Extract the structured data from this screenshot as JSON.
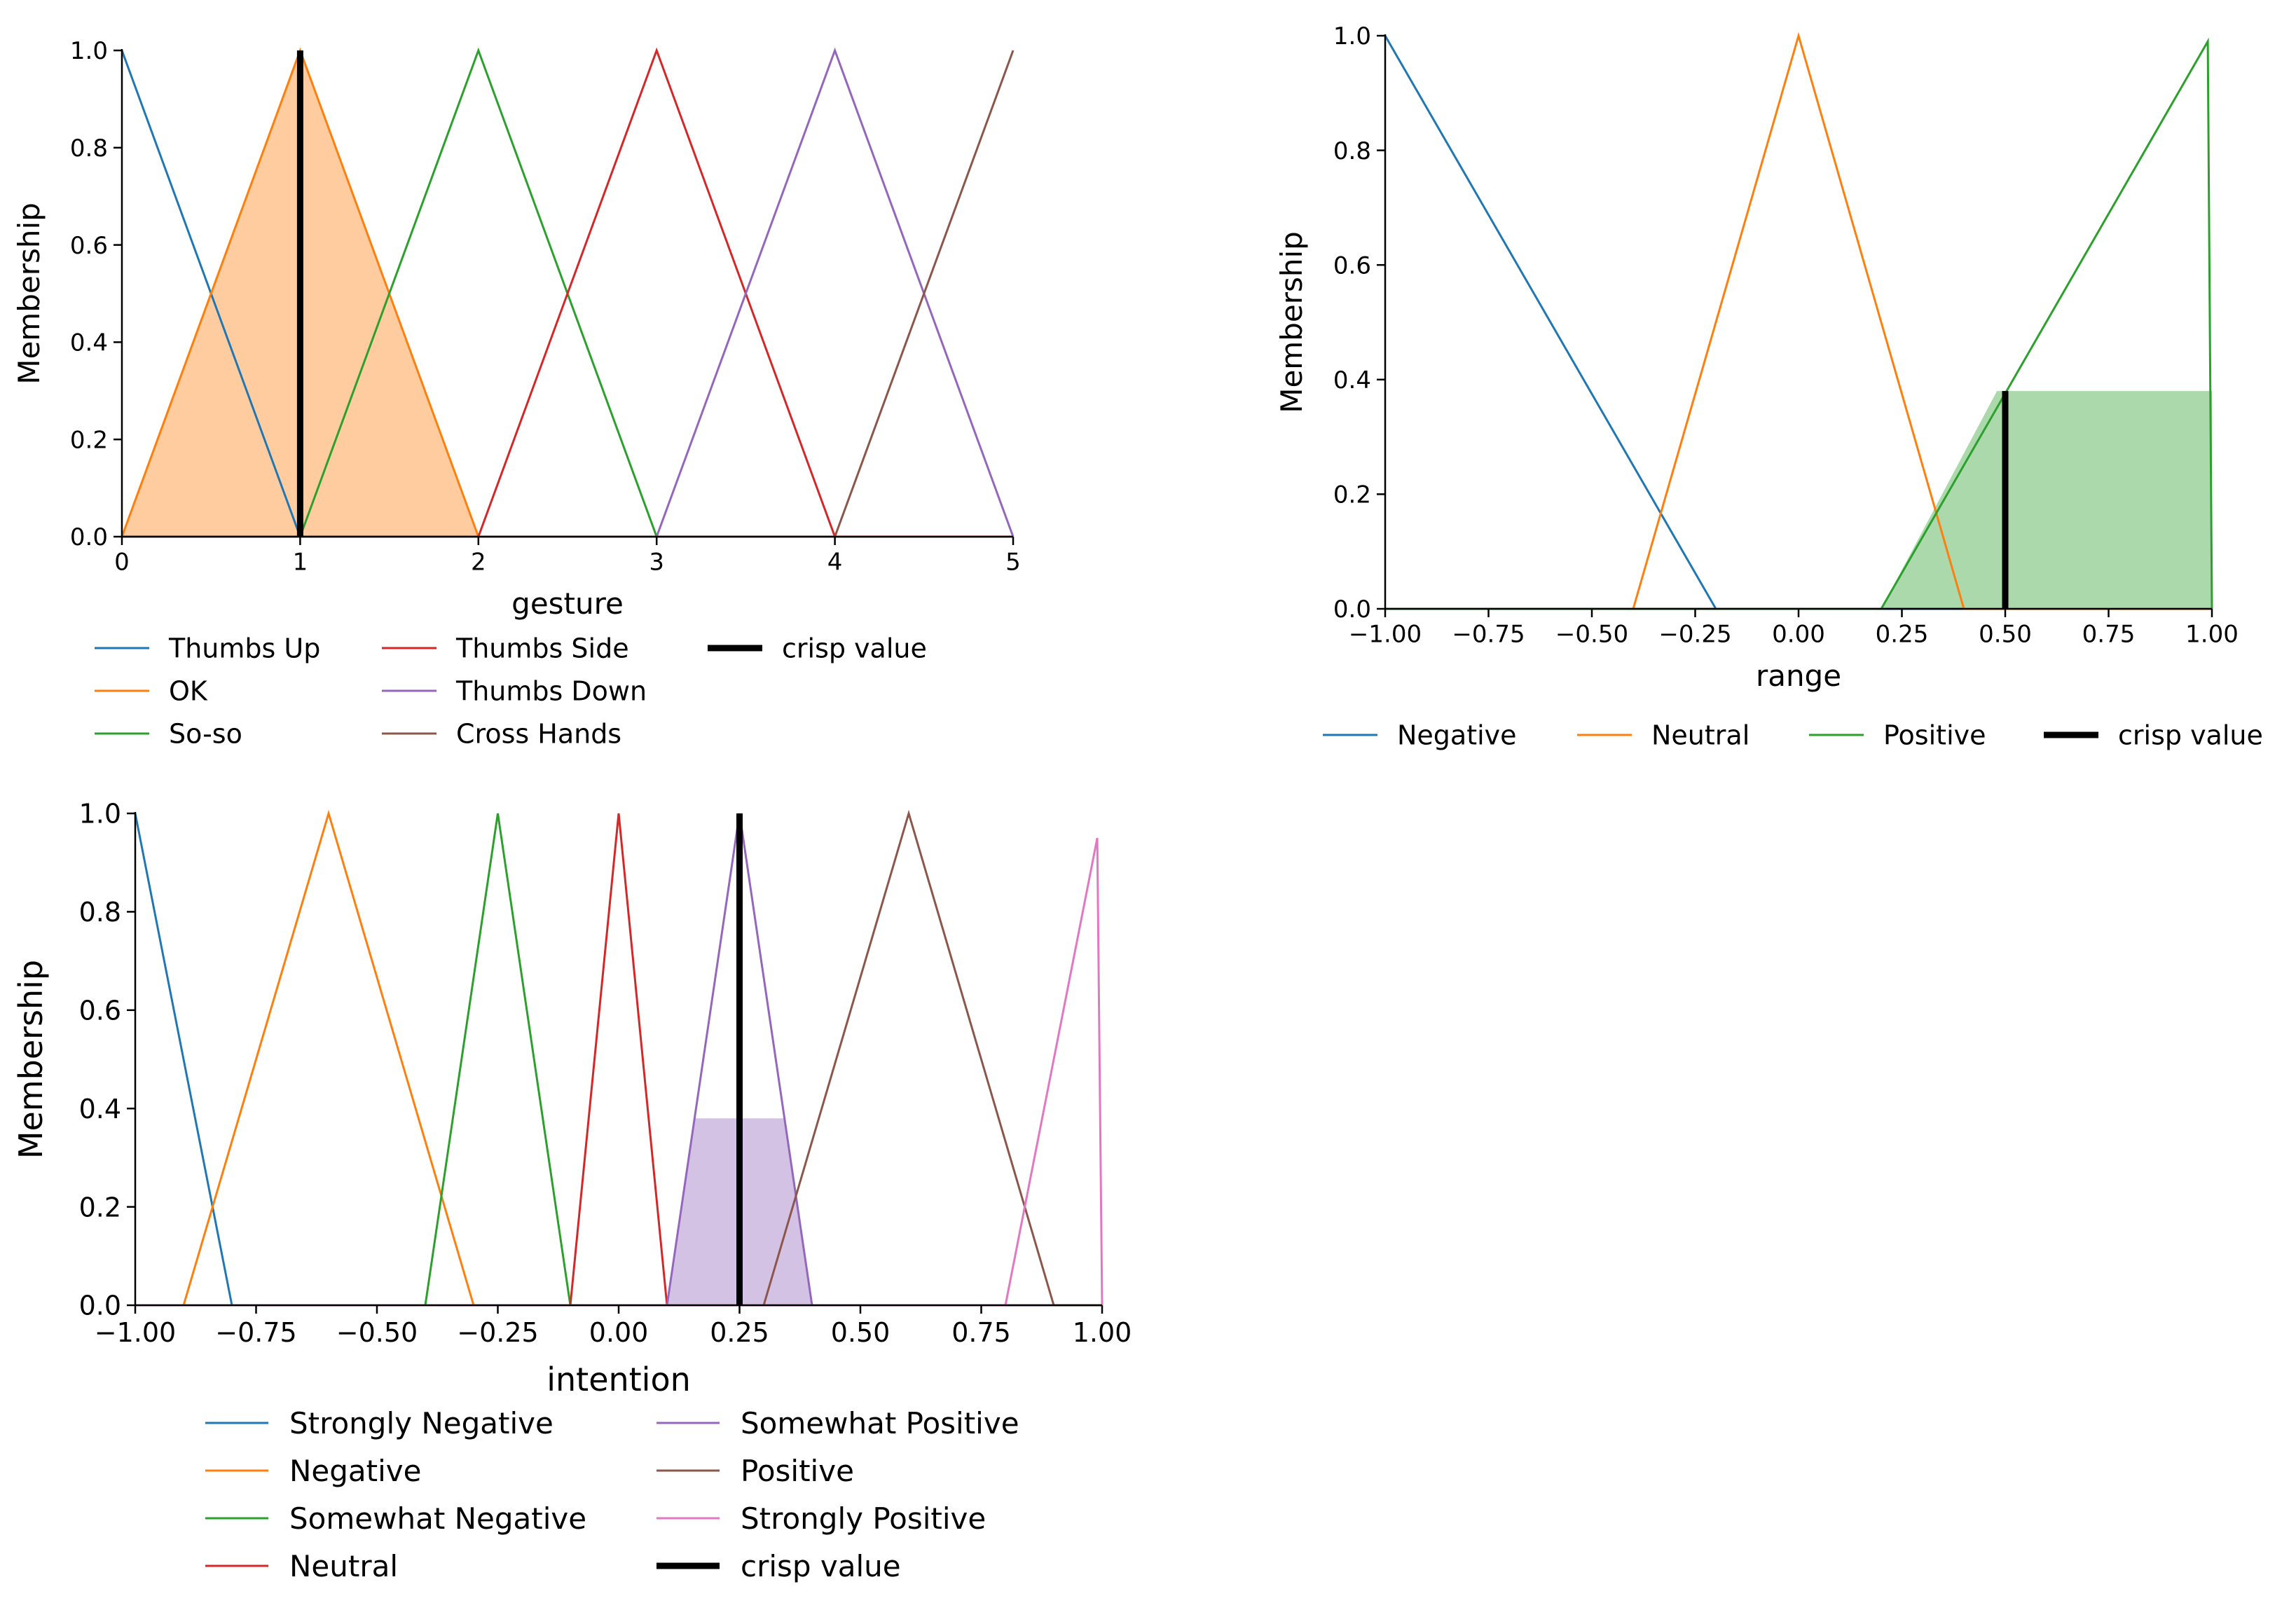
{
  "chart_data": [
    {
      "id": "gesture",
      "type": "line",
      "xlabel": "gesture",
      "ylabel": "Membership",
      "xlim": [
        0,
        5
      ],
      "ylim": [
        0,
        1.0
      ],
      "xticks": [
        "0",
        "1",
        "2",
        "3",
        "4",
        "5"
      ],
      "xtick_values": [
        0,
        1,
        2,
        3,
        4,
        5
      ],
      "yticks": [
        "0.0",
        "0.2",
        "0.4",
        "0.6",
        "0.8",
        "1.0"
      ],
      "ytick_values": [
        0,
        0.2,
        0.4,
        0.6,
        0.8,
        1.0
      ],
      "grid": false,
      "legend_position": "below",
      "series": [
        {
          "name": "Thumbs Up",
          "color": "#1f77b4",
          "x": [
            0,
            1,
            5
          ],
          "y": [
            1,
            0,
            0
          ]
        },
        {
          "name": "OK",
          "color": "#ff7f0e",
          "x": [
            0,
            1,
            2,
            5
          ],
          "y": [
            0,
            1,
            0,
            0
          ]
        },
        {
          "name": "So-so",
          "color": "#2ca02c",
          "x": [
            0,
            1,
            2,
            3,
            5
          ],
          "y": [
            0,
            0,
            1,
            0,
            0
          ]
        },
        {
          "name": "Thumbs Side",
          "color": "#d62728",
          "x": [
            0,
            2,
            3,
            4,
            5
          ],
          "y": [
            0,
            0,
            1,
            0,
            0
          ]
        },
        {
          "name": "Thumbs Down",
          "color": "#9467bd",
          "x": [
            0,
            3,
            4,
            5
          ],
          "y": [
            0,
            0,
            1,
            0
          ]
        },
        {
          "name": "Cross Hands",
          "color": "#8c564b",
          "x": [
            0,
            4,
            5
          ],
          "y": [
            0,
            0,
            1
          ]
        }
      ],
      "fill": {
        "x": [
          0,
          1,
          2
        ],
        "y": [
          0,
          1,
          0
        ],
        "color": "#ff7f0e",
        "opacity": 0.4
      },
      "crisp_value": {
        "label": "crisp value",
        "x": 1,
        "y": 1.0,
        "color": "#000000"
      },
      "legend": [
        "Thumbs Up",
        "OK",
        "So-so",
        "Thumbs Side",
        "Thumbs Down",
        "Cross Hands",
        "crisp value"
      ]
    },
    {
      "id": "range",
      "type": "line",
      "xlabel": "range",
      "ylabel": "Membership",
      "xlim": [
        -1.0,
        1.0
      ],
      "ylim": [
        0,
        1.0
      ],
      "xticks": [
        "−1.00",
        "−0.75",
        "−0.50",
        "−0.25",
        "0.00",
        "0.25",
        "0.50",
        "0.75",
        "1.00"
      ],
      "xtick_values": [
        -1.0,
        -0.75,
        -0.5,
        -0.25,
        0.0,
        0.25,
        0.5,
        0.75,
        1.0
      ],
      "yticks": [
        "0.0",
        "0.2",
        "0.4",
        "0.6",
        "0.8",
        "1.0"
      ],
      "ytick_values": [
        0,
        0.2,
        0.4,
        0.6,
        0.8,
        1.0
      ],
      "grid": false,
      "legend_position": "below",
      "series": [
        {
          "name": "Negative",
          "color": "#1f77b4",
          "x": [
            -1.0,
            -0.2,
            1.0
          ],
          "y": [
            1,
            0,
            0
          ]
        },
        {
          "name": "Neutral",
          "color": "#ff7f0e",
          "x": [
            -1.0,
            -0.4,
            0.0,
            0.4,
            1.0
          ],
          "y": [
            0,
            0,
            1,
            0,
            0
          ]
        },
        {
          "name": "Positive",
          "color": "#2ca02c",
          "x": [
            -1.0,
            0.2,
            0.99,
            1.0
          ],
          "y": [
            0,
            0,
            0.99,
            0
          ]
        }
      ],
      "fill": {
        "x": [
          0.2,
          0.48,
          1.0,
          1.0
        ],
        "y": [
          0,
          0.38,
          0.38,
          0
        ],
        "color": "#2ca02c",
        "opacity": 0.4
      },
      "crisp_value": {
        "label": "crisp value",
        "x": 0.5,
        "y": 0.38,
        "color": "#000000"
      },
      "legend": [
        "Negative",
        "Neutral",
        "Positive",
        "crisp value"
      ]
    },
    {
      "id": "intention",
      "type": "line",
      "xlabel": "intention",
      "ylabel": "Membership",
      "xlim": [
        -1.0,
        1.0
      ],
      "ylim": [
        0,
        1.0
      ],
      "xticks": [
        "−1.00",
        "−0.75",
        "−0.50",
        "−0.25",
        "0.00",
        "0.25",
        "0.50",
        "0.75",
        "1.00"
      ],
      "xtick_values": [
        -1.0,
        -0.75,
        -0.5,
        -0.25,
        0.0,
        0.25,
        0.5,
        0.75,
        1.0
      ],
      "yticks": [
        "0.0",
        "0.2",
        "0.4",
        "0.6",
        "0.8",
        "1.0"
      ],
      "ytick_values": [
        0,
        0.2,
        0.4,
        0.6,
        0.8,
        1.0
      ],
      "grid": false,
      "legend_position": "below",
      "series": [
        {
          "name": "Strongly Negative",
          "color": "#1f77b4",
          "x": [
            -1.0,
            -0.8,
            1.0
          ],
          "y": [
            1,
            0,
            0
          ]
        },
        {
          "name": "Negative",
          "color": "#ff7f0e",
          "x": [
            -1.0,
            -0.9,
            -0.6,
            -0.3,
            1.0
          ],
          "y": [
            0,
            0,
            1,
            0,
            0
          ]
        },
        {
          "name": "Somewhat Negative",
          "color": "#2ca02c",
          "x": [
            -1.0,
            -0.4,
            -0.25,
            -0.1,
            1.0
          ],
          "y": [
            0,
            0,
            1,
            0,
            0
          ]
        },
        {
          "name": "Neutral",
          "color": "#d62728",
          "x": [
            -1.0,
            -0.1,
            0.0,
            0.1,
            1.0
          ],
          "y": [
            0,
            0,
            1,
            0,
            0
          ]
        },
        {
          "name": "Somewhat Positive",
          "color": "#9467bd",
          "x": [
            -1.0,
            0.1,
            0.25,
            0.4,
            1.0
          ],
          "y": [
            0,
            0,
            1,
            0,
            0
          ]
        },
        {
          "name": "Positive",
          "color": "#8c564b",
          "x": [
            -1.0,
            0.3,
            0.6,
            0.9,
            1.0
          ],
          "y": [
            0,
            0,
            1,
            0,
            0
          ]
        },
        {
          "name": "Strongly Positive",
          "color": "#e377c2",
          "x": [
            -1.0,
            0.8,
            0.99,
            1.0
          ],
          "y": [
            0,
            0,
            0.95,
            0
          ]
        }
      ],
      "fill": {
        "x": [
          0.1,
          0.157,
          0.343,
          0.4
        ],
        "y": [
          0,
          0.38,
          0.38,
          0
        ],
        "color": "#9467bd",
        "opacity": 0.4
      },
      "crisp_value": {
        "label": "crisp value",
        "x": 0.25,
        "y": 1.0,
        "color": "#000000"
      },
      "legend": [
        "Strongly Negative",
        "Negative",
        "Somewhat Negative",
        "Neutral",
        "Somewhat Positive",
        "Positive",
        "Strongly Positive",
        "crisp value"
      ]
    }
  ]
}
